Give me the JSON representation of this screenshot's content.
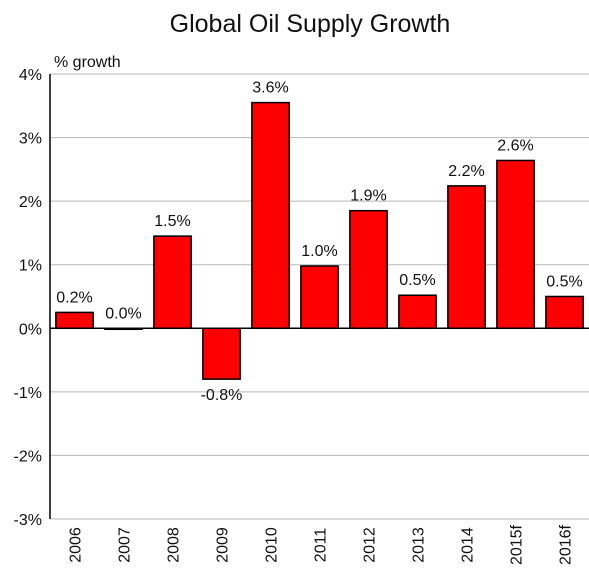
{
  "chart_data": {
    "type": "bar",
    "title": "Global Oil Supply Growth",
    "ylabel": "% growth",
    "xlabel": "",
    "categories": [
      "2006",
      "2007",
      "2008",
      "2009",
      "2010",
      "2011",
      "2012",
      "2013",
      "2014",
      "2015f",
      "2016f"
    ],
    "values": [
      0.25,
      0.0,
      1.45,
      -0.8,
      3.55,
      0.98,
      1.85,
      0.52,
      2.24,
      2.64,
      0.5
    ],
    "data_labels": [
      "0.2%",
      "0.0%",
      "1.5%",
      "-0.8%",
      "3.6%",
      "1.0%",
      "1.9%",
      "0.5%",
      "2.2%",
      "2.6%",
      "0.5%"
    ],
    "ylim": [
      -3,
      4
    ],
    "yticks": [
      4,
      3,
      2,
      1,
      0,
      -1,
      -2,
      -3
    ],
    "ytick_labels": [
      "4%",
      "3%",
      "2%",
      "1%",
      "0%",
      "-1%",
      "-2%",
      "-3%"
    ],
    "grid": true,
    "legend": "none",
    "bar_color": "#ff0000",
    "edge_color": "#000000",
    "grid_color": "#b8b8b8"
  }
}
